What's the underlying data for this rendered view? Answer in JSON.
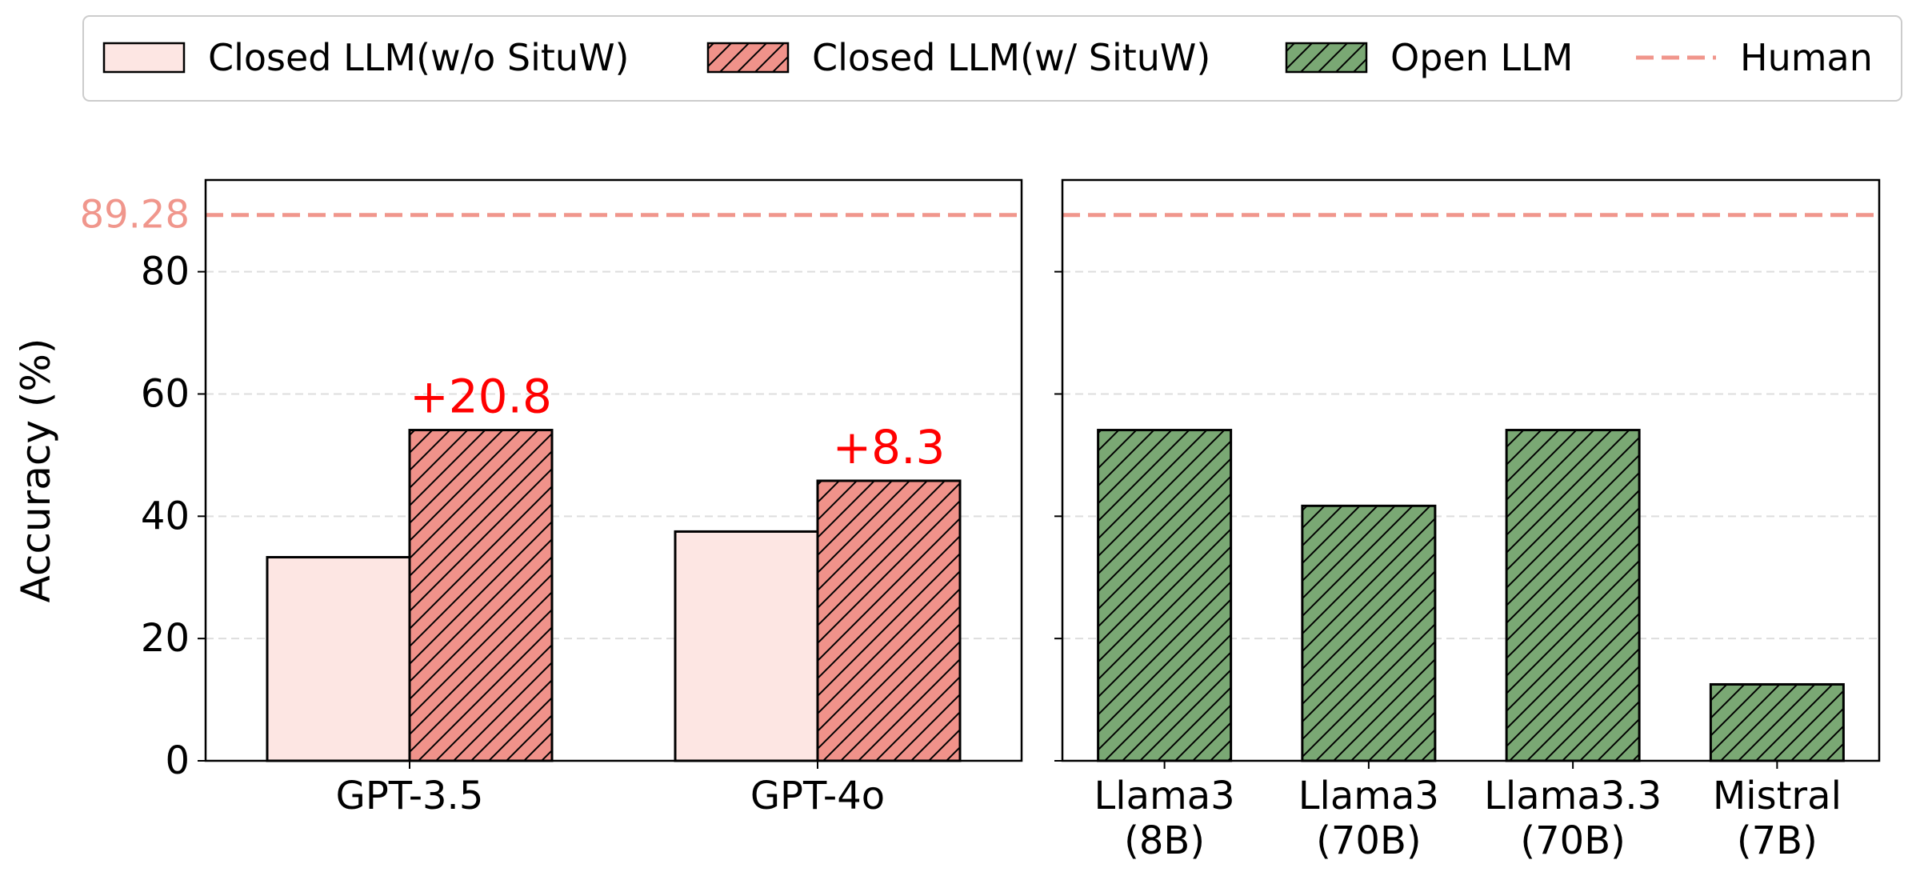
{
  "chart_data": {
    "type": "bar",
    "ylabel": "Accuracy (%)",
    "ylim": [
      0,
      95
    ],
    "yticks": [
      0,
      20,
      40,
      60,
      80
    ],
    "grid": "horizontal dashed",
    "legend_position": "top",
    "human_baseline": {
      "name": "Human",
      "value": 89.28,
      "label": "89.28",
      "color": "#f0968c"
    },
    "legend": [
      {
        "name": "Closed LLM(w/o SituW)",
        "color": "#fde6e3",
        "hatch": false
      },
      {
        "name": "Closed LLM(w/ SituW)",
        "color": "#f0928a",
        "hatch": true
      },
      {
        "name": "Open LLM",
        "color": "#7aa874",
        "hatch": true
      },
      {
        "name": "Human",
        "color": "#f0968c",
        "line": "dashed"
      }
    ],
    "panels": [
      {
        "name": "closed",
        "categories": [
          "GPT-3.5",
          "GPT-4o"
        ],
        "series": [
          {
            "name": "Closed LLM(w/o SituW)",
            "values": [
              33.3,
              37.5
            ],
            "color": "#fde6e3",
            "hatch": false
          },
          {
            "name": "Closed LLM(w/ SituW)",
            "values": [
              54.1,
              45.8
            ],
            "color": "#f0928a",
            "hatch": true
          }
        ],
        "annotations": [
          "+20.8",
          "+8.3"
        ],
        "annotation_color": "#ff0000"
      },
      {
        "name": "open",
        "categories": [
          "Llama3\n(8B)",
          "Llama3\n(70B)",
          "Llama3.3\n(70B)",
          "Mistral\n(7B)"
        ],
        "series": [
          {
            "name": "Open LLM",
            "values": [
              54.1,
              41.7,
              54.1,
              12.5
            ],
            "color": "#7aa874",
            "hatch": true
          }
        ]
      }
    ]
  }
}
